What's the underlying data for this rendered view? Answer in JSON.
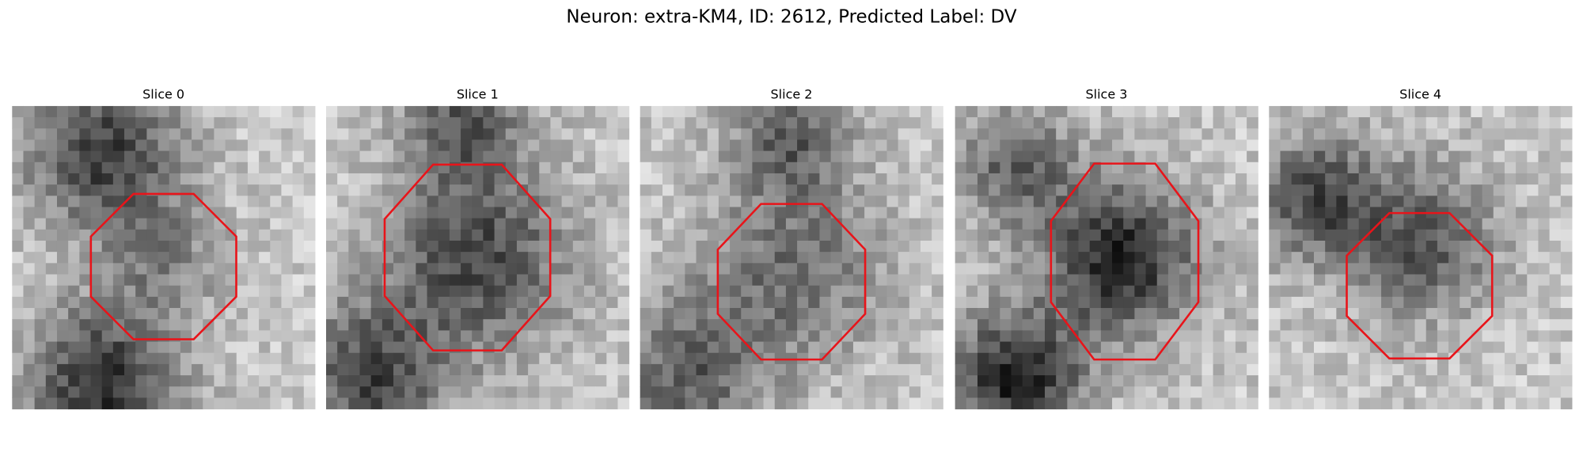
{
  "figure": {
    "title": "Neuron: extra-KM4, ID: 2612, Predicted Label: DV",
    "panels": [
      {
        "title": "Slice 0"
      },
      {
        "title": "Slice 1"
      },
      {
        "title": "Slice 2"
      },
      {
        "title": "Slice 3"
      },
      {
        "title": "Slice 4"
      }
    ]
  }
}
